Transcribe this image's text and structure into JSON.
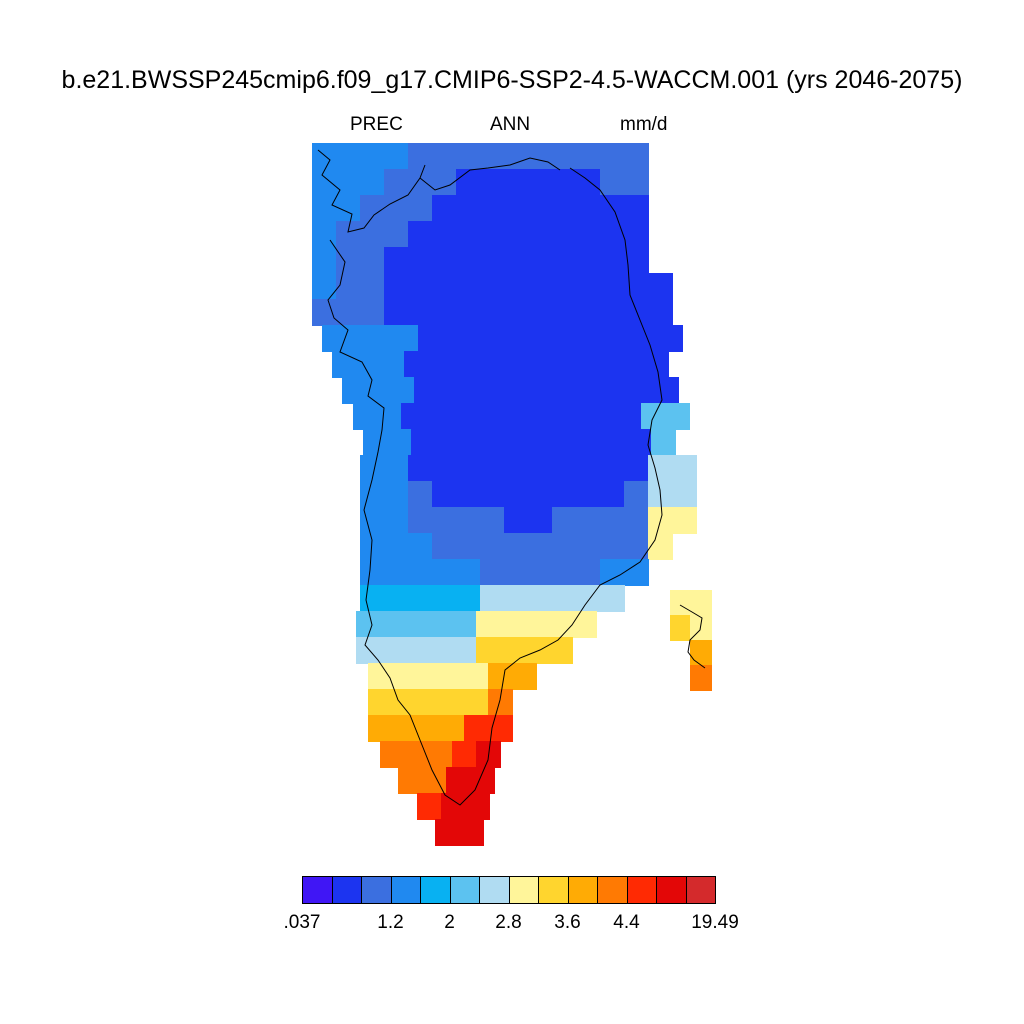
{
  "title": "b.e21.BWSSP245cmip6.f09_g17.CMIP6-SSP2-4.5-WACCM.001 (yrs 2046-2075)",
  "subtitle": {
    "variable": "PREC",
    "season": "ANN",
    "units": "mm/d"
  },
  "colorbar": {
    "colors": [
      "#4016f5",
      "#1c34f0",
      "#3b6fe0",
      "#2089f0",
      "#08b1f2",
      "#5cc2f0",
      "#b0dcf2",
      "#fff59a",
      "#ffd52e",
      "#ffab05",
      "#ff7a03",
      "#ff2a03",
      "#e30707",
      "#d42a2c"
    ],
    "labels": [
      ".037",
      "1.2",
      "2",
      "2.8",
      "3.6",
      "4.4",
      "19.49"
    ],
    "label_positions_bin_index": [
      0,
      3,
      5,
      7,
      9,
      11,
      14
    ]
  },
  "map": {
    "region": "Greenland",
    "field": "annual mean precipitation",
    "pattern": "lowest values over the northern interior ice sheet, increasing toward the coasts, highest along the southeast coast"
  }
}
